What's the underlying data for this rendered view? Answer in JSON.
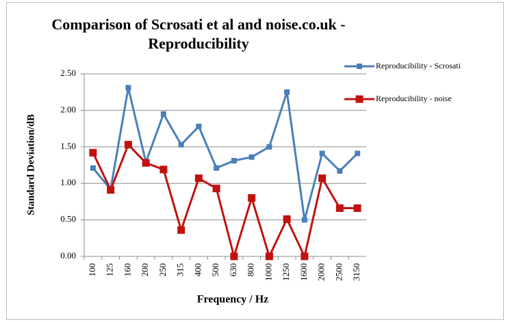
{
  "chart_data": {
    "type": "line",
    "title": "Comparison of Scrosati et al and noise.co.uk - Reproducibility",
    "x_label": "Frequency / Hz",
    "y_label": "Standard Deviation/dB",
    "categories": [
      "100",
      "125",
      "160",
      "200",
      "250",
      "315",
      "400",
      "500",
      "630",
      "800",
      "1000",
      "1250",
      "1600",
      "2000",
      "2500",
      "3150"
    ],
    "series": [
      {
        "name": "Reproducibility - Scrosati",
        "color": "#4a7ebb",
        "values": [
          1.21,
          0.92,
          2.31,
          1.29,
          1.95,
          1.53,
          1.78,
          1.21,
          1.31,
          1.36,
          1.5,
          2.25,
          0.5,
          1.41,
          1.17,
          1.41
        ]
      },
      {
        "name": "Reproducibility - noise",
        "color": "#c0120f",
        "values": [
          1.42,
          0.91,
          1.53,
          1.28,
          1.19,
          0.36,
          1.07,
          0.93,
          0.0,
          0.8,
          0.0,
          0.51,
          0.0,
          1.07,
          0.66,
          0.66
        ]
      }
    ],
    "ylim": [
      0,
      2.5
    ],
    "yticks": [
      {
        "value": 0,
        "label": "0.00"
      },
      {
        "value": 0.5,
        "label": "0.50"
      },
      {
        "value": 1,
        "label": "1.00"
      },
      {
        "value": 1.5,
        "label": "1.50"
      },
      {
        "value": 2,
        "label": "2.00"
      },
      {
        "value": 2.5,
        "label": "2.50"
      }
    ],
    "grid": true,
    "legend": "right"
  }
}
